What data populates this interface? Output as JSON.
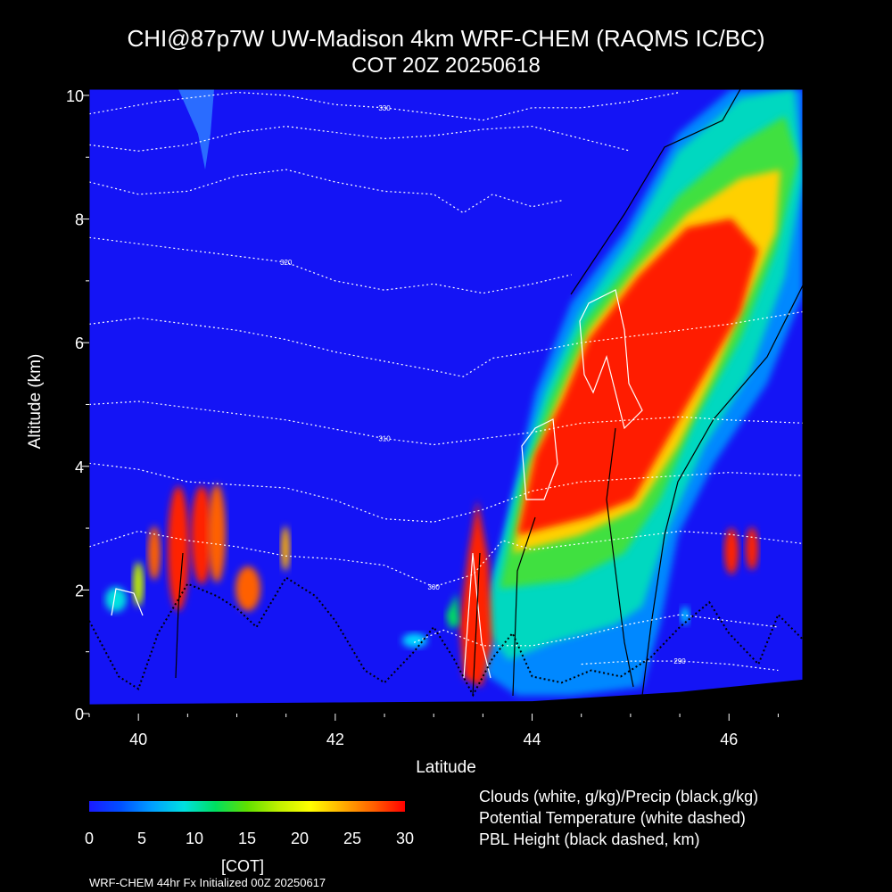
{
  "chart_data": {
    "type": "heatmap",
    "title": "CHI@87p7W UW-Madison 4km WRF-CHEM (RAQMS IC/BC)",
    "subtitle": "COT 20Z 20250618",
    "xlabel": "Latitude",
    "ylabel": "Altitude (km)",
    "xlim": [
      39.5,
      46.75
    ],
    "ylim": [
      0,
      10.1
    ],
    "x_ticks": [
      40,
      42,
      44,
      46
    ],
    "y_ticks": [
      0,
      2,
      4,
      6,
      8,
      10
    ],
    "colorbar": {
      "label": "[COT]",
      "range": [
        0,
        30
      ],
      "ticks": [
        0,
        5,
        10,
        15,
        20,
        25,
        30
      ],
      "colors": [
        "#1a1aff",
        "#0050ff",
        "#00a0ff",
        "#00e0e0",
        "#00e060",
        "#60e000",
        "#c0f000",
        "#ffff00",
        "#ffb000",
        "#ff6000",
        "#ff0000"
      ]
    },
    "legend": [
      "Clouds (white, g/kg)/Precip (black,g/kg)",
      "Potential Temperature (white dashed)",
      "PBL Height (black dashed, km)"
    ],
    "footer": "WRF-CHEM 44hr  Fx Initialized 00Z 20250617",
    "theta_contours": [
      {
        "label": "330",
        "points": [
          [
            39.5,
            9.7
          ],
          [
            40.2,
            9.9
          ],
          [
            41.0,
            10.05
          ],
          [
            41.5,
            10.0
          ],
          [
            42.0,
            9.85
          ],
          [
            42.5,
            9.8
          ],
          [
            43.0,
            9.7
          ],
          [
            43.5,
            9.6
          ],
          [
            44.0,
            9.8
          ],
          [
            44.5,
            9.8
          ],
          [
            45.0,
            9.9
          ],
          [
            45.5,
            10.05
          ]
        ]
      },
      {
        "label": "",
        "points": [
          [
            39.5,
            9.2
          ],
          [
            40.0,
            9.1
          ],
          [
            40.5,
            9.2
          ],
          [
            41.0,
            9.4
          ],
          [
            41.5,
            9.5
          ],
          [
            42.0,
            9.4
          ],
          [
            42.5,
            9.3
          ],
          [
            43.0,
            9.35
          ],
          [
            43.5,
            9.45
          ],
          [
            44.0,
            9.5
          ],
          [
            44.5,
            9.3
          ],
          [
            45.0,
            9.1
          ]
        ]
      },
      {
        "label": "",
        "points": [
          [
            39.5,
            8.6
          ],
          [
            40.0,
            8.4
          ],
          [
            40.5,
            8.45
          ],
          [
            41.0,
            8.7
          ],
          [
            41.5,
            8.8
          ],
          [
            42.0,
            8.6
          ],
          [
            42.5,
            8.45
          ],
          [
            43.0,
            8.4
          ],
          [
            43.3,
            8.1
          ],
          [
            43.6,
            8.4
          ],
          [
            44.0,
            8.2
          ],
          [
            44.3,
            8.3
          ]
        ]
      },
      {
        "label": "320",
        "points": [
          [
            39.5,
            7.7
          ],
          [
            40.0,
            7.6
          ],
          [
            40.5,
            7.5
          ],
          [
            41.0,
            7.4
          ],
          [
            41.5,
            7.3
          ],
          [
            42.0,
            7.0
          ],
          [
            42.5,
            6.85
          ],
          [
            43.0,
            6.95
          ],
          [
            43.5,
            6.8
          ],
          [
            44.0,
            6.95
          ],
          [
            44.4,
            7.1
          ]
        ]
      },
      {
        "label": "",
        "points": [
          [
            39.5,
            6.3
          ],
          [
            40.0,
            6.4
          ],
          [
            40.5,
            6.3
          ],
          [
            41.0,
            6.2
          ],
          [
            41.5,
            6.05
          ],
          [
            42.0,
            5.85
          ],
          [
            42.5,
            5.7
          ],
          [
            43.0,
            5.55
          ],
          [
            43.3,
            5.45
          ],
          [
            43.6,
            5.75
          ],
          [
            44.0,
            5.85
          ],
          [
            44.5,
            6.0
          ],
          [
            45.0,
            6.1
          ],
          [
            45.5,
            6.2
          ],
          [
            46.0,
            6.3
          ],
          [
            46.75,
            6.5
          ]
        ]
      },
      {
        "label": "310",
        "points": [
          [
            39.5,
            5.0
          ],
          [
            40.0,
            5.05
          ],
          [
            40.5,
            4.95
          ],
          [
            41.0,
            4.85
          ],
          [
            41.5,
            4.75
          ],
          [
            42.0,
            4.6
          ],
          [
            42.5,
            4.45
          ],
          [
            43.0,
            4.35
          ],
          [
            43.5,
            4.45
          ],
          [
            44.0,
            4.55
          ],
          [
            44.5,
            4.7
          ],
          [
            45.0,
            4.75
          ],
          [
            45.5,
            4.8
          ],
          [
            46.0,
            4.75
          ],
          [
            46.75,
            4.7
          ]
        ]
      },
      {
        "label": "",
        "points": [
          [
            39.5,
            4.05
          ],
          [
            40.0,
            3.95
          ],
          [
            40.5,
            3.75
          ],
          [
            41.0,
            3.7
          ],
          [
            41.5,
            3.65
          ],
          [
            42.0,
            3.45
          ],
          [
            42.5,
            3.15
          ],
          [
            43.0,
            3.1
          ],
          [
            43.5,
            3.3
          ],
          [
            44.0,
            3.6
          ],
          [
            44.5,
            3.75
          ],
          [
            45.0,
            3.8
          ],
          [
            45.5,
            3.85
          ],
          [
            46.0,
            3.9
          ],
          [
            46.75,
            3.85
          ]
        ]
      },
      {
        "label": "300",
        "points": [
          [
            39.5,
            2.7
          ],
          [
            40.0,
            2.95
          ],
          [
            40.5,
            2.8
          ],
          [
            41.0,
            2.7
          ],
          [
            41.5,
            2.55
          ],
          [
            42.0,
            2.5
          ],
          [
            42.5,
            2.4
          ],
          [
            43.0,
            2.05
          ],
          [
            43.4,
            2.25
          ],
          [
            43.7,
            2.8
          ],
          [
            44.0,
            2.65
          ],
          [
            44.5,
            2.75
          ],
          [
            45.0,
            2.85
          ],
          [
            45.5,
            2.95
          ],
          [
            46.0,
            2.9
          ],
          [
            46.75,
            2.75
          ]
        ]
      },
      {
        "label": "",
        "points": [
          [
            42.8,
            1.15
          ],
          [
            43.1,
            1.35
          ],
          [
            43.5,
            1.1
          ],
          [
            44.0,
            1.1
          ],
          [
            44.5,
            1.25
          ],
          [
            45.0,
            1.45
          ],
          [
            45.5,
            1.6
          ],
          [
            46.0,
            1.5
          ],
          [
            46.5,
            1.4
          ]
        ]
      },
      {
        "label": "290",
        "points": [
          [
            44.5,
            0.8
          ],
          [
            45.0,
            0.85
          ],
          [
            45.5,
            0.85
          ],
          [
            46.0,
            0.8
          ],
          [
            46.5,
            0.7
          ]
        ]
      }
    ],
    "pbl_height": [
      [
        39.5,
        1.5
      ],
      [
        39.8,
        0.6
      ],
      [
        40.0,
        0.4
      ],
      [
        40.2,
        1.3
      ],
      [
        40.5,
        2.1
      ],
      [
        40.8,
        1.9
      ],
      [
        41.0,
        1.7
      ],
      [
        41.2,
        1.4
      ],
      [
        41.5,
        2.2
      ],
      [
        41.8,
        1.9
      ],
      [
        42.0,
        1.5
      ],
      [
        42.3,
        0.7
      ],
      [
        42.5,
        0.5
      ],
      [
        42.8,
        1.0
      ],
      [
        43.0,
        1.4
      ],
      [
        43.2,
        0.9
      ],
      [
        43.4,
        0.3
      ],
      [
        43.6,
        0.9
      ],
      [
        43.8,
        1.3
      ],
      [
        44.0,
        0.6
      ],
      [
        44.3,
        0.5
      ],
      [
        44.6,
        0.7
      ],
      [
        44.9,
        0.6
      ],
      [
        45.2,
        0.9
      ],
      [
        45.5,
        1.4
      ],
      [
        45.8,
        1.8
      ],
      [
        46.0,
        1.3
      ],
      [
        46.3,
        0.8
      ],
      [
        46.5,
        1.6
      ],
      [
        46.75,
        1.2
      ]
    ],
    "terrain_km": [
      [
        39.5,
        0.15
      ],
      [
        42.0,
        0.18
      ],
      [
        44.0,
        0.2
      ],
      [
        45.5,
        0.35
      ],
      [
        46.75,
        0.55
      ]
    ]
  }
}
